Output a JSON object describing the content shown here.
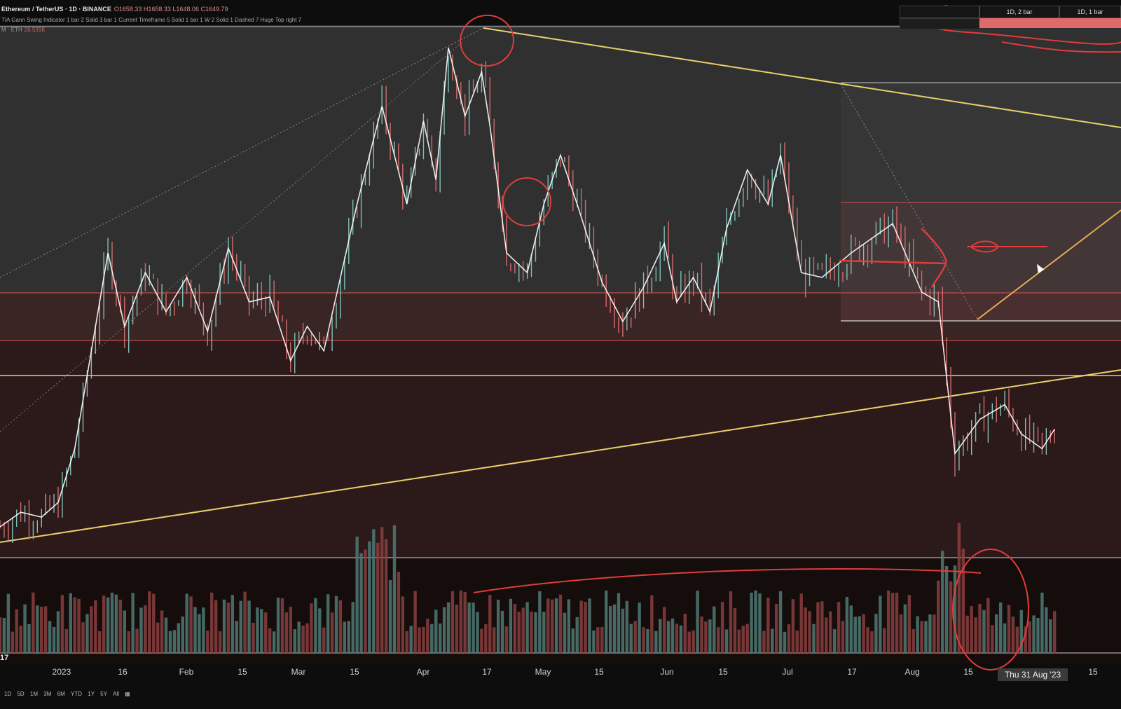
{
  "header": {
    "symbol": "Ethereum / TetherUS · 1D · BINANCE",
    "ohlc": "O1658.33 H1658.33 L1648.06 C1649.79",
    "indicator": "TIA Gann Swing Indicator 1 bar 2 Solid 3 bar 1 Current Timeframe 5 Solid 1 bar 1 W 2 Solid 1 Dashed 7 Huge Top right 7"
  },
  "volume_tag": {
    "label": "M · ETH",
    "value": "26.531K"
  },
  "timeframe_panel": {
    "cells": [
      "",
      "1D, 2 bar",
      "1D, 1 bar"
    ]
  },
  "axis_tag": "17",
  "crosshair_date": "Thu 31 Aug '23",
  "range_buttons": [
    "1D",
    "5D",
    "1M",
    "3M",
    "6M",
    "YTD",
    "1Y",
    "5Y",
    "All"
  ],
  "colors": {
    "up": "#7fbfb7",
    "down": "#d36b6b",
    "yellow": "#e8d06a",
    "red_line": "#c24b4b",
    "annot": "#e23c3c"
  },
  "icons": [
    "calendar-icon",
    "cursor-arrow-icon"
  ],
  "chart_data": {
    "type": "line",
    "title": "Ethereum / TetherUS · 1D · BINANCE",
    "x_tick_labels": [
      "2023",
      "16",
      "Feb",
      "15",
      "Mar",
      "15",
      "Apr",
      "17",
      "May",
      "15",
      "Jun",
      "15",
      "Jul",
      "17",
      "Aug",
      "15",
      "15"
    ],
    "series": [
      {
        "values": [
          [
            0,
            1540
          ],
          [
            5,
            1570
          ],
          [
            10,
            1560
          ],
          [
            14,
            1590
          ],
          [
            18,
            1700
          ],
          [
            22,
            1900
          ],
          [
            26,
            2100
          ],
          [
            30,
            1950
          ],
          [
            35,
            2060
          ],
          [
            40,
            1980
          ],
          [
            45,
            2050
          ],
          [
            50,
            1940
          ],
          [
            55,
            2110
          ],
          [
            60,
            2000
          ],
          [
            65,
            2010
          ],
          [
            70,
            1880
          ],
          [
            74,
            1950
          ],
          [
            78,
            1900
          ],
          [
            82,
            2050
          ],
          [
            86,
            2200
          ],
          [
            92,
            2400
          ],
          [
            98,
            2200
          ],
          [
            102,
            2370
          ],
          [
            105,
            2250
          ],
          [
            108,
            2520
          ],
          [
            112,
            2380
          ],
          [
            116,
            2470
          ],
          [
            118,
            2360
          ],
          [
            122,
            2100
          ],
          [
            127,
            2060
          ],
          [
            131,
            2200
          ],
          [
            135,
            2300
          ],
          [
            139,
            2200
          ],
          [
            145,
            2040
          ],
          [
            150,
            1960
          ],
          [
            155,
            2030
          ],
          [
            160,
            2120
          ],
          [
            163,
            2000
          ],
          [
            167,
            2050
          ],
          [
            171,
            1980
          ],
          [
            175,
            2150
          ],
          [
            180,
            2270
          ],
          [
            185,
            2200
          ],
          [
            188,
            2300
          ],
          [
            193,
            2060
          ],
          [
            198,
            2050
          ],
          [
            205,
            2100
          ],
          [
            215,
            2160
          ],
          [
            222,
            2020
          ],
          [
            226,
            2000
          ],
          [
            230,
            1690
          ],
          [
            236,
            1760
          ],
          [
            242,
            1790
          ],
          [
            246,
            1730
          ],
          [
            251,
            1700
          ],
          [
            254,
            1740
          ]
        ],
        "colors": "teal/red candles"
      }
    ],
    "volume_visible": true,
    "grid": false
  }
}
